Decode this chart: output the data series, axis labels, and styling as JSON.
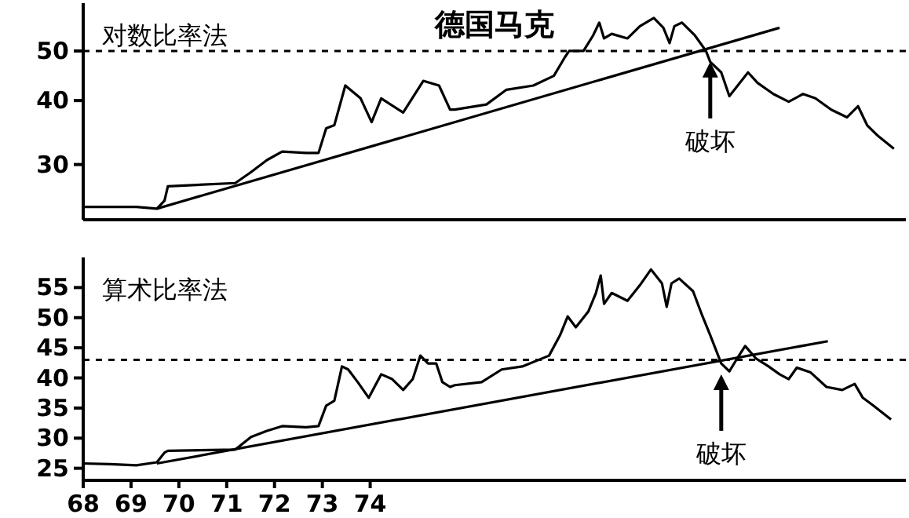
{
  "chart_data": [
    {
      "type": "line",
      "title": "德国马克",
      "log": "y",
      "xlim": [
        1968,
        1985.2
      ],
      "ylim": [
        23.4,
        62
      ],
      "yticks": [
        30,
        40,
        50
      ],
      "tick_labels": "y",
      "annotations": [
        "对数比率法",
        {
          "text": "破坏",
          "x": 1981.11,
          "y": 47.6
        }
      ],
      "ref_lines": [
        {
          "axis": "y",
          "value": 50,
          "line_style": "dashed",
          "color": "#000000"
        }
      ],
      "series": [
        {
          "color": "#000000",
          "x": [
            1968.0,
            1969.11,
            1969.54,
            1969.7,
            1969.77,
            1971.18,
            1971.51,
            1971.84,
            1972.16,
            1972.66,
            1972.92,
            1973.08,
            1973.25,
            1973.48,
            1973.8,
            1974.03,
            1974.23,
            1974.69,
            1975.11,
            1975.44,
            1975.67,
            1975.77,
            1976.43,
            1976.85,
            1977.41,
            1977.84,
            1978.07,
            1978.16,
            1978.46,
            1978.66,
            1978.79,
            1978.89,
            1979.05,
            1979.38,
            1979.64,
            1979.93,
            1980.13,
            1980.26,
            1980.36,
            1980.52,
            1980.79,
            1981.02,
            1981.11,
            1981.34,
            1981.51,
            1981.9,
            1982.1,
            1982.43,
            1982.75,
            1983.05,
            1983.31,
            1983.64,
            1983.97,
            1984.2,
            1984.39,
            1984.62,
            1984.95
          ],
          "values": [
            24.8,
            24.8,
            24.6,
            25.5,
            27.2,
            27.6,
            29.0,
            30.6,
            31.8,
            31.6,
            31.6,
            35.3,
            35.8,
            42.8,
            40.4,
            36.3,
            40.4,
            37.9,
            43.7,
            42.8,
            38.4,
            38.4,
            39.3,
            42.0,
            42.8,
            44.7,
            48.6,
            50.0,
            50.0,
            53.6,
            56.8,
            52.9,
            54.0,
            52.9,
            55.9,
            58.0,
            55.5,
            51.8,
            55.9,
            56.8,
            53.6,
            50.0,
            47.6,
            45.4,
            40.8,
            45.4,
            43.3,
            41.2,
            39.8,
            41.2,
            40.4,
            38.4,
            37.1,
            39.0,
            35.8,
            34.1,
            32.2
          ]
        },
        {
          "type": "line",
          "color": "#000000",
          "x": [
            1969.54,
            1982.56
          ],
          "values": [
            24.6,
            55.5
          ]
        }
      ]
    },
    {
      "type": "line",
      "xlim": [
        1968,
        1985.2
      ],
      "ylim": [
        23,
        60
      ],
      "yticks": [
        25,
        30,
        35,
        40,
        45,
        50,
        55
      ],
      "xticks": [
        {
          "value": 1968,
          "label": "68"
        },
        {
          "value": 1969,
          "label": "69"
        },
        {
          "value": 1970,
          "label": "70"
        },
        {
          "value": 1971,
          "label": "71"
        },
        {
          "value": 1972,
          "label": "72"
        },
        {
          "value": 1973,
          "label": "73"
        },
        {
          "value": 1974,
          "label": "74"
        }
      ],
      "annotations": [
        "算术比率法",
        {
          "text": "破坏",
          "x": 1981.34,
          "y": 40.6
        }
      ],
      "ref_lines": [
        {
          "axis": "y",
          "value": 43,
          "line_style": "dashed",
          "color": "#000000"
        }
      ],
      "series": [
        {
          "color": "#000000",
          "x": [
            1968.0,
            1968.56,
            1969.11,
            1969.54,
            1969.7,
            1969.77,
            1971.18,
            1971.51,
            1971.84,
            1972.16,
            1972.66,
            1972.92,
            1973.08,
            1973.25,
            1973.41,
            1973.54,
            1973.74,
            1973.97,
            1974.23,
            1974.46,
            1974.69,
            1974.89,
            1975.05,
            1975.21,
            1975.38,
            1975.51,
            1975.67,
            1975.77,
            1976.33,
            1976.75,
            1977.18,
            1977.74,
            1977.97,
            1978.13,
            1978.3,
            1978.56,
            1978.72,
            1978.82,
            1978.89,
            1979.05,
            1979.38,
            1979.64,
            1979.87,
            1980.1,
            1980.2,
            1980.3,
            1980.46,
            1980.75,
            1980.95,
            1981.11,
            1981.34,
            1981.51,
            1981.67,
            1981.84,
            1982.07,
            1982.33,
            1982.56,
            1982.75,
            1982.92,
            1983.21,
            1983.54,
            1983.87,
            1984.13,
            1984.3,
            1984.52,
            1984.89
          ],
          "values": [
            25.8,
            25.7,
            25.5,
            26.0,
            27.6,
            27.9,
            28.1,
            30.2,
            31.2,
            32.0,
            31.8,
            32.0,
            35.4,
            36.2,
            41.9,
            41.4,
            39.3,
            36.7,
            40.6,
            39.8,
            38.0,
            39.8,
            43.7,
            42.4,
            42.4,
            39.3,
            38.5,
            38.8,
            39.3,
            41.4,
            41.9,
            43.7,
            47.1,
            50.2,
            48.4,
            51.0,
            54.1,
            57.0,
            52.3,
            54.1,
            52.8,
            55.4,
            58.0,
            55.7,
            51.8,
            55.7,
            56.5,
            54.4,
            50.2,
            47.1,
            42.4,
            41.1,
            43.2,
            45.3,
            43.2,
            41.9,
            40.6,
            39.8,
            41.7,
            40.9,
            38.5,
            38.0,
            39.0,
            36.7,
            35.4,
            33.1
          ]
        },
        {
          "type": "line",
          "color": "#000000",
          "x": [
            1969.54,
            1983.57
          ],
          "values": [
            25.8,
            46.1
          ]
        }
      ]
    }
  ]
}
